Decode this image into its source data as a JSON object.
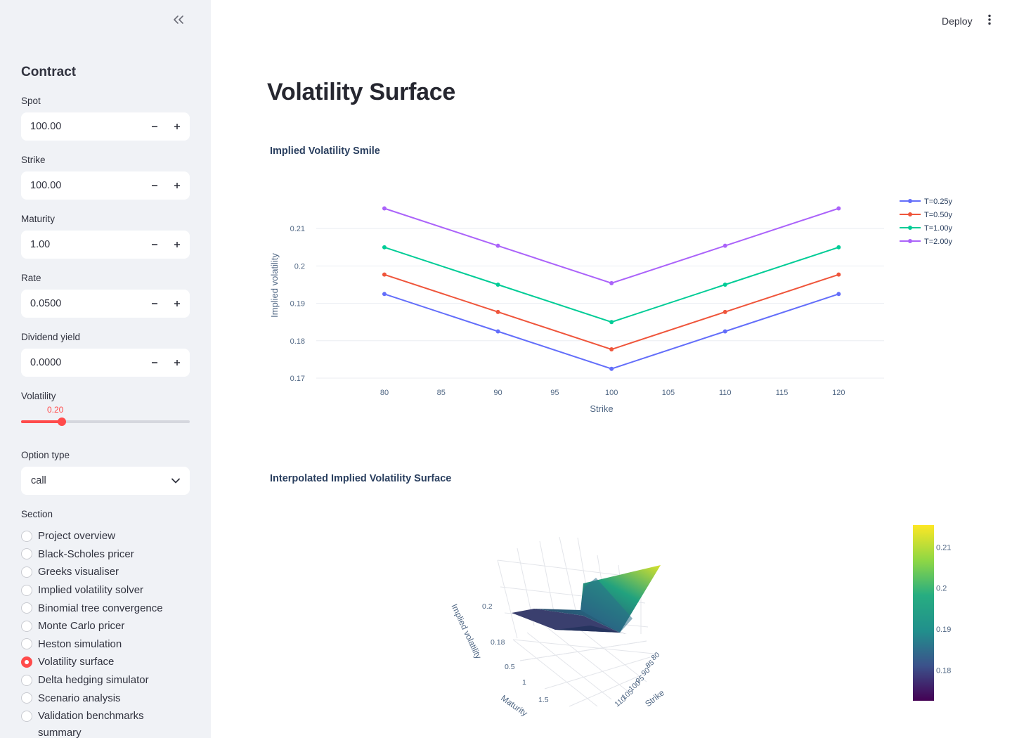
{
  "sidebar": {
    "collapse_icon": "double-chevron-left-icon",
    "heading": "Contract",
    "fields": [
      {
        "label": "Spot",
        "value": "100.00"
      },
      {
        "label": "Strike",
        "value": "100.00"
      },
      {
        "label": "Maturity",
        "value": "1.00"
      },
      {
        "label": "Rate",
        "value": "0.0500"
      },
      {
        "label": "Dividend yield",
        "value": "0.0000"
      }
    ],
    "stepper_minus": "−",
    "stepper_plus": "+",
    "volatility": {
      "label": "Volatility",
      "value": "0.20",
      "fraction": 0.2
    },
    "option_type": {
      "label": "Option type",
      "value": "call"
    },
    "section": {
      "label": "Section",
      "items": [
        {
          "label": "Project overview",
          "selected": false
        },
        {
          "label": "Black-Scholes pricer",
          "selected": false
        },
        {
          "label": "Greeks visualiser",
          "selected": false
        },
        {
          "label": "Implied volatility solver",
          "selected": false
        },
        {
          "label": "Binomial tree convergence",
          "selected": false
        },
        {
          "label": "Monte Carlo pricer",
          "selected": false
        },
        {
          "label": "Heston simulation",
          "selected": false
        },
        {
          "label": "Volatility surface",
          "selected": true
        },
        {
          "label": "Delta hedging simulator",
          "selected": false
        },
        {
          "label": "Scenario analysis",
          "selected": false
        },
        {
          "label": "Validation benchmarks",
          "selected": false
        }
      ],
      "partial_item": "summary"
    }
  },
  "header": {
    "deploy": "Deploy",
    "menu_icon": "kebab-menu-icon"
  },
  "main": {
    "title": "Volatility Surface",
    "chart1_title": "Implied Volatility Smile",
    "chart2_title": "Interpolated Implied Volatility Surface"
  },
  "colors": {
    "accent": "#ff4b4b",
    "sidebar_bg": "#f0f2f6"
  },
  "chart_data": [
    {
      "type": "line",
      "title": "Implied Volatility Smile",
      "xlabel": "Strike",
      "ylabel": "Implied volatility",
      "x": [
        80,
        90,
        100,
        110,
        120
      ],
      "xticks": [
        "80",
        "85",
        "90",
        "95",
        "100",
        "105",
        "110",
        "115",
        "120"
      ],
      "yticks": [
        "0.17",
        "0.18",
        "0.19",
        "0.2",
        "0.21"
      ],
      "xlim": [
        74,
        124
      ],
      "ylim": [
        0.17,
        0.2185
      ],
      "legend": "top-right",
      "series": [
        {
          "name": "T=0.25y",
          "color": "#636efa",
          "values": [
            0.1925,
            0.1825,
            0.1725,
            0.1825,
            0.1925
          ]
        },
        {
          "name": "T=0.50y",
          "color": "#ef553b",
          "values": [
            0.1977,
            0.1877,
            0.1777,
            0.1877,
            0.1977
          ]
        },
        {
          "name": "T=1.00y",
          "color": "#00cc96",
          "values": [
            0.205,
            0.195,
            0.185,
            0.195,
            0.205
          ]
        },
        {
          "name": "T=2.00y",
          "color": "#ab63fa",
          "values": [
            0.2154,
            0.2054,
            0.1954,
            0.2054,
            0.2154
          ]
        }
      ]
    },
    {
      "type": "surface",
      "title": "Interpolated Implied Volatility Surface",
      "xlabel": "Strike",
      "ylabel": "Maturity",
      "zlabel": "Implied volatility",
      "strike_ticks": [
        "80",
        "85",
        "90",
        "95",
        "100",
        "105",
        "110"
      ],
      "maturity_ticks": [
        "0.5",
        "1",
        "1.5"
      ],
      "z_ticks": [
        "0.2",
        "0.18"
      ],
      "colorscale": "viridis",
      "colorbar_ticks": [
        "0.21",
        "0.2",
        "0.19",
        "0.18"
      ],
      "colorbar_range": [
        0.1725,
        0.2154
      ]
    }
  ]
}
